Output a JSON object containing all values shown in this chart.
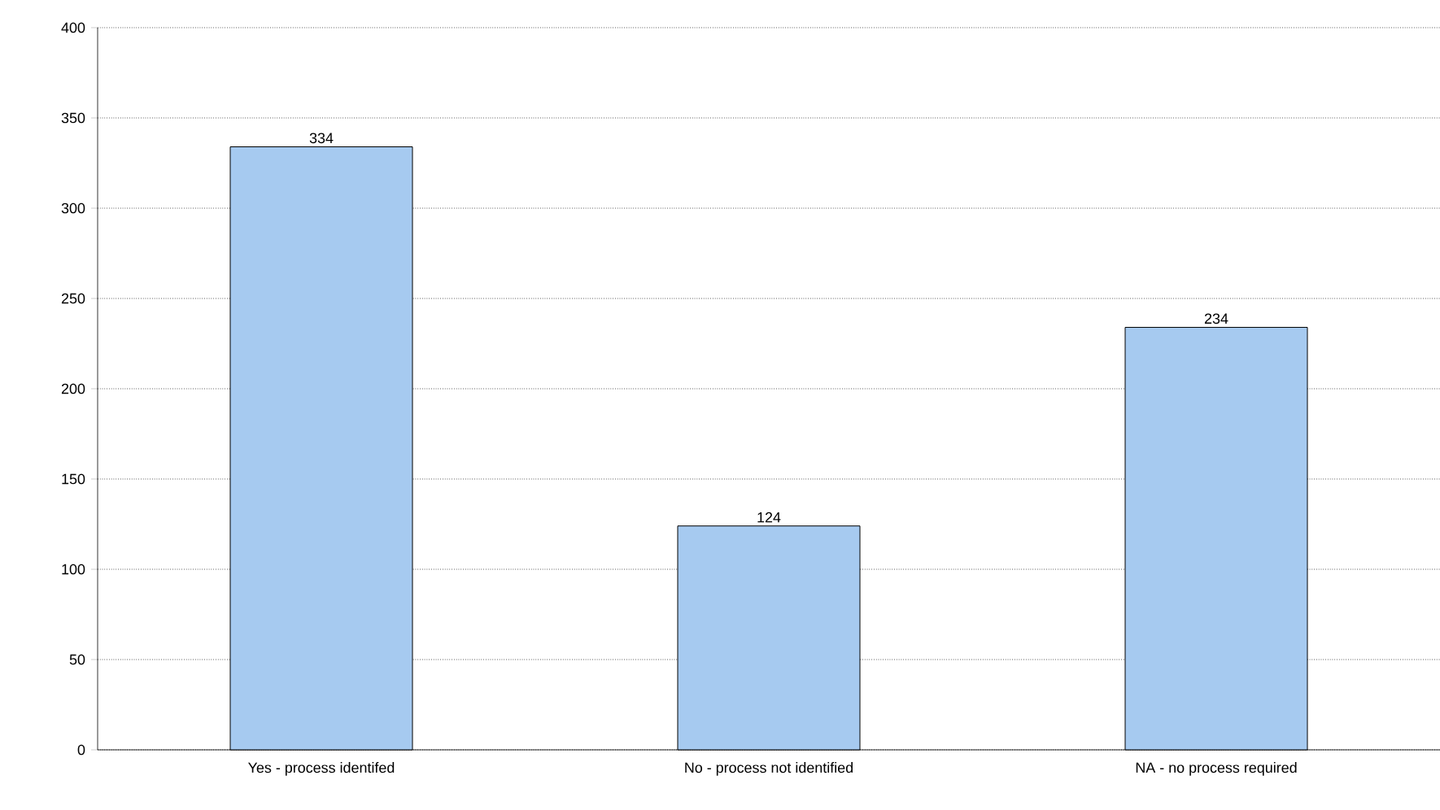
{
  "chart_data": {
    "type": "bar",
    "categories": [
      "Yes - process identifed",
      "No - process not identified",
      "NA - no process required"
    ],
    "values": [
      334,
      124,
      234
    ],
    "color": "#a6caf0",
    "ylim": [
      0,
      400
    ],
    "yticks": [
      0,
      50,
      100,
      150,
      200,
      250,
      300,
      350,
      400
    ],
    "grid": "y",
    "data_labels": true
  }
}
